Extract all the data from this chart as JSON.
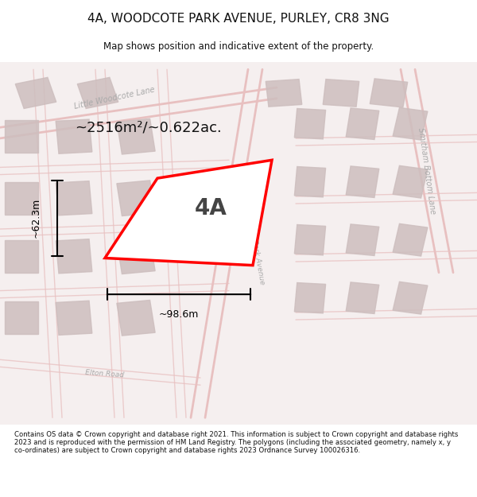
{
  "title_line1": "4A, WOODCOTE PARK AVENUE, PURLEY, CR8 3NG",
  "title_line2": "Map shows position and indicative extent of the property.",
  "area_text": "~2516m²/~0.622ac.",
  "label_4A": "4A",
  "dim_width": "~98.6m",
  "dim_height": "~62.3m",
  "footer_text": "Contains OS data © Crown copyright and database right 2021. This information is subject to Crown copyright and database rights 2023 and is reproduced with the permission of HM Land Registry. The polygons (including the associated geometry, namely x, y co-ordinates) are subject to Crown copyright and database rights 2023 Ordnance Survey 100026316.",
  "bg_color": "#ffffff",
  "map_bg": "#f5efef",
  "road_color": "#e8c0c0",
  "building_color": "#cdbebe",
  "highlight_color": "#ff0000",
  "road_label_color": "#aaaaaa",
  "title_color": "#111111",
  "dim_color": "#000000"
}
